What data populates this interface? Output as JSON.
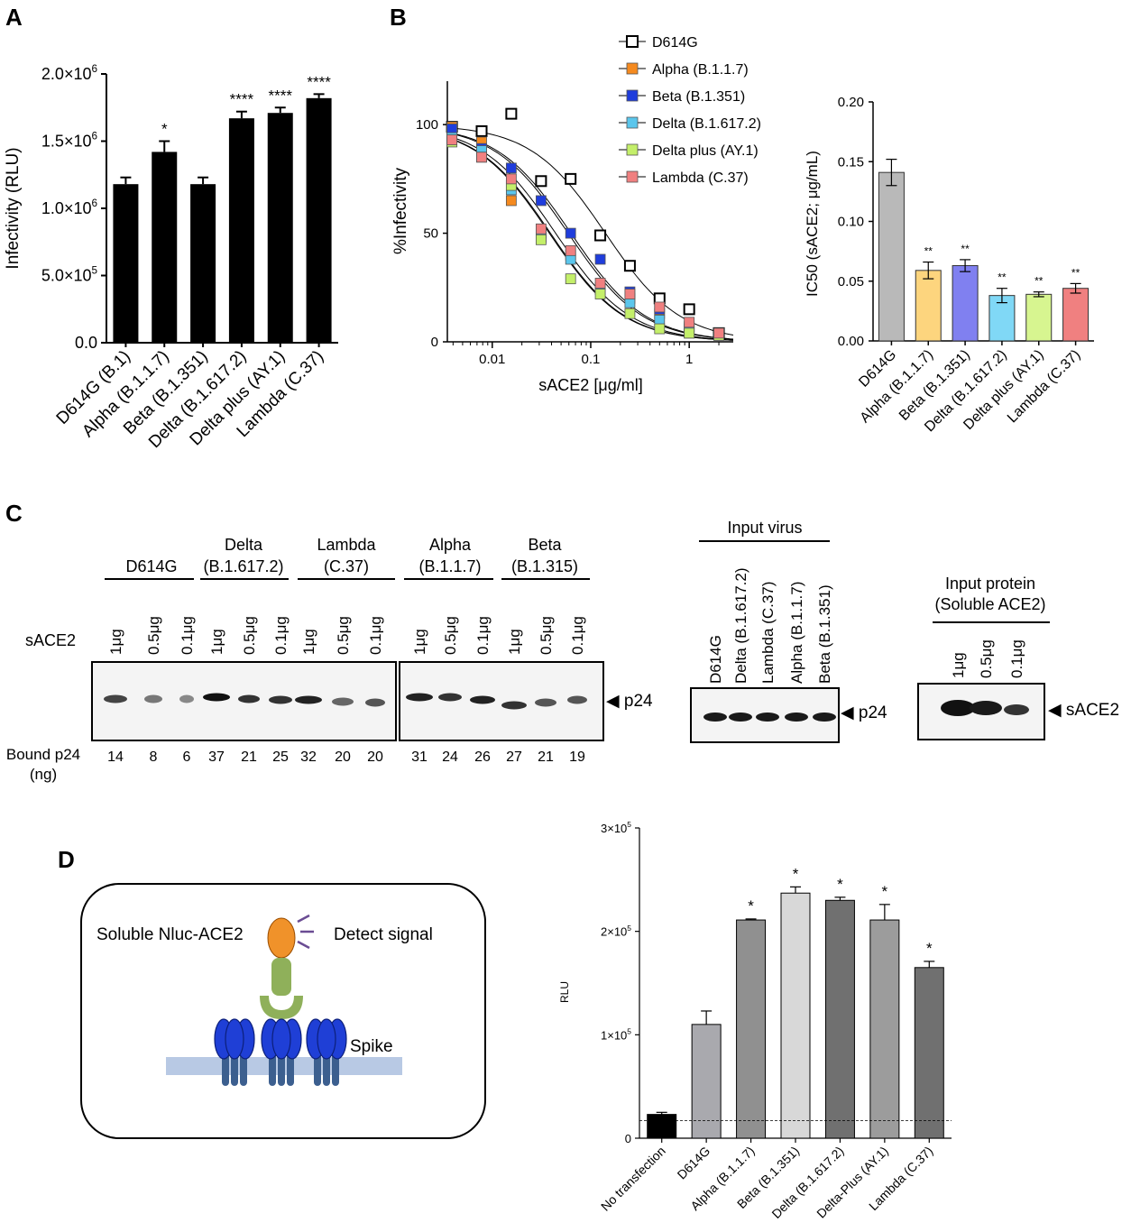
{
  "panel_labels": {
    "A": "A",
    "B": "B",
    "C": "C",
    "D": "D"
  },
  "colors": {
    "d614g": "#bdbdbd",
    "alpha": "#f58a1f",
    "beta": "#1f3ddc",
    "delta": "#5bc6ec",
    "deltaplus": "#c4ef6a",
    "lambda": "#f08080",
    "alpha_bar": "#fdd57e",
    "beta_bar": "#8080f0",
    "delta_bar": "#80d8f6",
    "deltaplus_bar": "#d7f590",
    "lambda_bar": "#f08080"
  },
  "chart_data": [
    {
      "id": "A",
      "type": "bar",
      "ylabel": "Infectivity (RLU)",
      "ylim": [
        0,
        2000000
      ],
      "yticks": [
        0,
        500000,
        1000000,
        1500000,
        2000000
      ],
      "ytick_labels": [
        {
          "base": "0.0",
          "exp": ""
        },
        {
          "base": "5.0×10",
          "exp": "5"
        },
        {
          "base": "1.0×10",
          "exp": "6"
        },
        {
          "base": "1.5×10",
          "exp": "6"
        },
        {
          "base": "2.0×10",
          "exp": "6"
        }
      ],
      "categories": [
        "D614G (B.1)",
        "Alpha (B.1.1.7)",
        "Beta (B.1.351)",
        "Delta (B.1.617.2)",
        "Delta plus (AY.1)",
        "Lambda (C.37)"
      ],
      "values": [
        1180000,
        1420000,
        1180000,
        1670000,
        1710000,
        1820000
      ],
      "errors": [
        50000,
        80000,
        50000,
        50000,
        40000,
        30000
      ],
      "significance": [
        "",
        "*",
        "",
        "****",
        "****",
        "****"
      ]
    },
    {
      "id": "B-curve",
      "type": "scatter",
      "xlabel": "sACE2 [μg/ml]",
      "ylabel": "%Infectivity",
      "xscale": "log",
      "xlim": [
        0.0035,
        2.8
      ],
      "ylim": [
        0,
        120
      ],
      "xticks": [
        0.01,
        0.1,
        1
      ],
      "xtick_labels": [
        "0.01",
        "0.1",
        "1"
      ],
      "yticks": [
        0,
        50,
        100
      ],
      "ytick_labels": [
        "0",
        "50",
        "100"
      ],
      "x": [
        0.0039,
        0.0078,
        0.0156,
        0.0313,
        0.0625,
        0.125,
        0.25,
        0.5,
        1,
        2
      ],
      "series": [
        {
          "name": "D614G",
          "values": [
            99,
            97,
            105,
            74,
            75,
            49,
            35,
            20,
            15,
            4
          ],
          "ic50": 0.141,
          "marker": "open"
        },
        {
          "name": "Alpha (B.1.1.7)",
          "values": [
            99,
            92,
            65,
            50,
            40,
            25,
            20,
            13,
            7,
            3
          ],
          "ic50": 0.059
        },
        {
          "name": "Beta (B.1.351)",
          "values": [
            98,
            89,
            80,
            65,
            50,
            38,
            23,
            15,
            4,
            3
          ],
          "ic50": 0.063
        },
        {
          "name": "Delta (B.1.617.2)",
          "values": [
            94,
            88,
            70,
            48,
            38,
            24,
            18,
            10,
            6,
            4
          ],
          "ic50": 0.038
        },
        {
          "name": "Delta plus (AY.1)",
          "values": [
            92,
            85,
            72,
            47,
            29,
            22,
            13,
            6,
            4,
            3
          ],
          "ic50": 0.039
        },
        {
          "name": "Lambda (C.37)",
          "values": [
            93,
            85,
            75,
            52,
            42,
            27,
            22,
            16,
            9,
            4
          ],
          "ic50": 0.044
        }
      ]
    },
    {
      "id": "B-ic50",
      "type": "bar",
      "ylabel": "IC50 (sACE2; μg/mL)",
      "ylim": [
        0,
        0.2
      ],
      "yticks": [
        0,
        0.05,
        0.1,
        0.15,
        0.2
      ],
      "ytick_labels": [
        "0.00",
        "0.05",
        "0.10",
        "0.15",
        "0.20"
      ],
      "categories": [
        "D614G",
        "Alpha (B.1.1.7)",
        "Beta (B.1.351)",
        "Delta (B.1.617.2)",
        "Delta plus (AY.1)",
        "Lambda (C.37)"
      ],
      "values": [
        0.141,
        0.059,
        0.063,
        0.038,
        0.039,
        0.044
      ],
      "errors": [
        0.011,
        0.007,
        0.005,
        0.006,
        0.002,
        0.004
      ],
      "significance": [
        "",
        "**",
        "**",
        "**",
        "**",
        "**"
      ]
    },
    {
      "id": "D-bar",
      "type": "bar",
      "ylabel": "RLU",
      "ylim": [
        0,
        300000
      ],
      "yticks": [
        0,
        100000,
        200000,
        300000
      ],
      "ytick_labels": [
        {
          "base": "0",
          "exp": ""
        },
        {
          "base": "1×10",
          "exp": "5"
        },
        {
          "base": "2×10",
          "exp": "5"
        },
        {
          "base": "3×10",
          "exp": "5"
        }
      ],
      "categories": [
        "No transfection",
        "D614G",
        "Alpha (B.1.1.7)",
        "Beta (B.1.351)",
        "Delta (B.1.617.2)",
        "Delta-Plus (AY.1)",
        "Lambda (C.37)"
      ],
      "values": [
        23000,
        110000,
        211000,
        237000,
        230000,
        211000,
        165000
      ],
      "errors": [
        2000,
        13000,
        1000,
        6000,
        3000,
        15000,
        6000
      ],
      "bar_colors": [
        "#000000",
        "#a9a9ae",
        "#909090",
        "#d8d8d8",
        "#707070",
        "#9c9c9c",
        "#707070"
      ],
      "significance": [
        "",
        "",
        "*",
        "*",
        "*",
        "*",
        "*"
      ],
      "threshold": 17000
    }
  ],
  "panelC": {
    "row_label": "sACE2",
    "doses": [
      "1μg",
      "0.5μg",
      "0.1μg"
    ],
    "groups1": [
      {
        "name": "D614G",
        "sub": ""
      },
      {
        "name": "Delta",
        "sub": "(B.1.617.2)"
      },
      {
        "name": "Lambda",
        "sub": "(C.37)"
      }
    ],
    "groups2": [
      {
        "name": "Alpha",
        "sub": "(B.1.1.7)"
      },
      {
        "name": "Beta",
        "sub": "(B.1.315)"
      }
    ],
    "band_label": "◀ p24",
    "bound_label_1": "Bound p24",
    "bound_label_2": "(ng)",
    "bound_values": [
      "14",
      "8",
      "6",
      "37",
      "21",
      "25",
      "32",
      "20",
      "20",
      "31",
      "24",
      "26",
      "27",
      "21",
      "19"
    ],
    "input_virus_title": "Input virus",
    "input_virus_lanes": [
      "D614G",
      "Delta (B.1.617.2)",
      "Lambda (C.37)",
      "Alpha (B.1.1.7)",
      "Beta (B.1.351)"
    ],
    "input_virus_band": "◀ p24",
    "input_protein_title_1": "Input protein",
    "input_protein_title_2": "(Soluble ACE2)",
    "input_protein_lanes": [
      "1μg",
      "0.5μg",
      "0.1μg"
    ],
    "input_protein_band": "◀ sACE2"
  },
  "panelD": {
    "probe_label": "Soluble Nluc-ACE2",
    "signal_label": "Detect signal",
    "spike_label": "Spike"
  }
}
